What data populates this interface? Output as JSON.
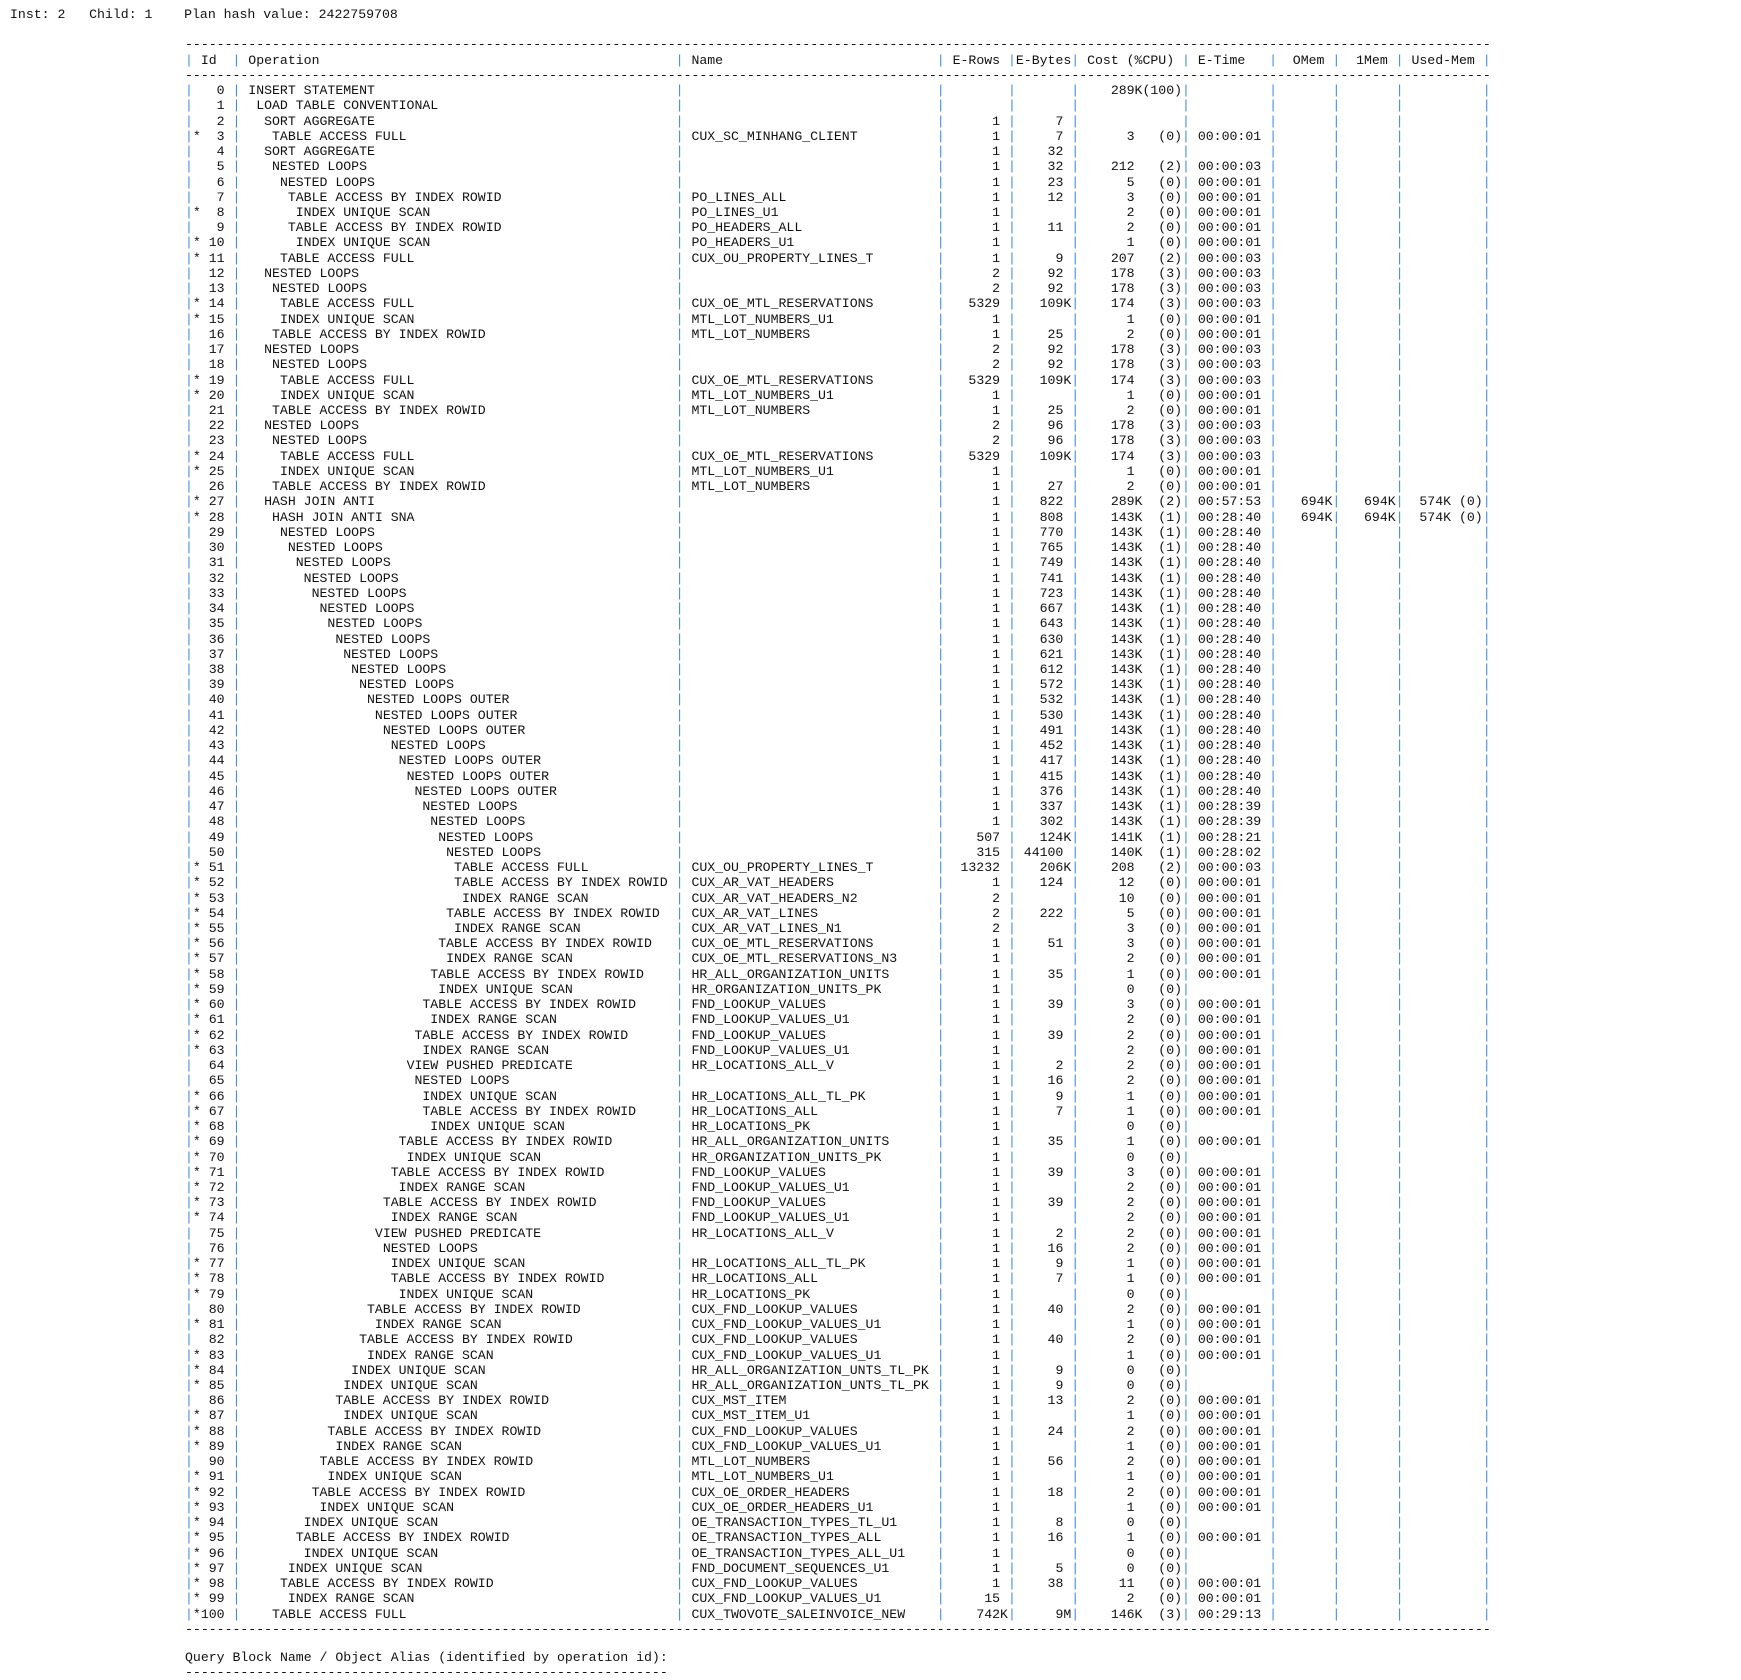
{
  "header": {
    "inst": "Inst: 2",
    "child": "Child: 1",
    "plan_hash": "Plan hash value: 2422759708"
  },
  "columns": {
    "id": "Id",
    "operation": "Operation",
    "name": "Name",
    "e_rows": "E-Rows",
    "e_bytes": "E-Bytes",
    "cost": "Cost (%CPU)",
    "e_time": "E-Time",
    "omem": "OMem",
    "mem1": "1Mem",
    "used_mem": "Used-Mem"
  },
  "row_columns": [
    "id",
    "predicate",
    "depth",
    "operation",
    "name",
    "e_rows",
    "e_bytes",
    "cost",
    "cpu",
    "e_time",
    "omem",
    "mem1",
    "used_mem"
  ],
  "rows": [
    [
      "0",
      "",
      0,
      "INSERT STATEMENT",
      "",
      "",
      "",
      "289K",
      "(100)",
      "",
      "",
      "",
      ""
    ],
    [
      "1",
      "",
      1,
      "LOAD TABLE CONVENTIONAL",
      "",
      "",
      "",
      "",
      "",
      "",
      "",
      "",
      ""
    ],
    [
      "2",
      "",
      2,
      "SORT AGGREGATE",
      "",
      "1",
      "7",
      "",
      "",
      "",
      "",
      "",
      ""
    ],
    [
      "3",
      "*",
      3,
      "TABLE ACCESS FULL",
      "CUX_SC_MINHANG_CLIENT",
      "1",
      "7",
      "3",
      "(0)",
      "00:00:01",
      "",
      "",
      ""
    ],
    [
      "4",
      "",
      2,
      "SORT AGGREGATE",
      "",
      "1",
      "32",
      "",
      "",
      "",
      "",
      "",
      ""
    ],
    [
      "5",
      "",
      3,
      "NESTED LOOPS",
      "",
      "1",
      "32",
      "212",
      "(2)",
      "00:00:03",
      "",
      "",
      ""
    ],
    [
      "6",
      "",
      4,
      "NESTED LOOPS",
      "",
      "1",
      "23",
      "5",
      "(0)",
      "00:00:01",
      "",
      "",
      ""
    ],
    [
      "7",
      "",
      5,
      "TABLE ACCESS BY INDEX ROWID",
      "PO_LINES_ALL",
      "1",
      "12",
      "3",
      "(0)",
      "00:00:01",
      "",
      "",
      ""
    ],
    [
      "8",
      "*",
      6,
      "INDEX UNIQUE SCAN",
      "PO_LINES_U1",
      "1",
      "",
      "2",
      "(0)",
      "00:00:01",
      "",
      "",
      ""
    ],
    [
      "9",
      "",
      5,
      "TABLE ACCESS BY INDEX ROWID",
      "PO_HEADERS_ALL",
      "1",
      "11",
      "2",
      "(0)",
      "00:00:01",
      "",
      "",
      ""
    ],
    [
      "10",
      "*",
      6,
      "INDEX UNIQUE SCAN",
      "PO_HEADERS_U1",
      "1",
      "",
      "1",
      "(0)",
      "00:00:01",
      "",
      "",
      ""
    ],
    [
      "11",
      "*",
      4,
      "TABLE ACCESS FULL",
      "CUX_OU_PROPERTY_LINES_T",
      "1",
      "9",
      "207",
      "(2)",
      "00:00:03",
      "",
      "",
      ""
    ],
    [
      "12",
      "",
      2,
      "NESTED LOOPS",
      "",
      "2",
      "92",
      "178",
      "(3)",
      "00:00:03",
      "",
      "",
      ""
    ],
    [
      "13",
      "",
      3,
      "NESTED LOOPS",
      "",
      "2",
      "92",
      "178",
      "(3)",
      "00:00:03",
      "",
      "",
      ""
    ],
    [
      "14",
      "*",
      4,
      "TABLE ACCESS FULL",
      "CUX_OE_MTL_RESERVATIONS",
      "5329",
      "109K",
      "174",
      "(3)",
      "00:00:03",
      "",
      "",
      ""
    ],
    [
      "15",
      "*",
      4,
      "INDEX UNIQUE SCAN",
      "MTL_LOT_NUMBERS_U1",
      "1",
      "",
      "1",
      "(0)",
      "00:00:01",
      "",
      "",
      ""
    ],
    [
      "16",
      "",
      3,
      "TABLE ACCESS BY INDEX ROWID",
      "MTL_LOT_NUMBERS",
      "1",
      "25",
      "2",
      "(0)",
      "00:00:01",
      "",
      "",
      ""
    ],
    [
      "17",
      "",
      2,
      "NESTED LOOPS",
      "",
      "2",
      "92",
      "178",
      "(3)",
      "00:00:03",
      "",
      "",
      ""
    ],
    [
      "18",
      "",
      3,
      "NESTED LOOPS",
      "",
      "2",
      "92",
      "178",
      "(3)",
      "00:00:03",
      "",
      "",
      ""
    ],
    [
      "19",
      "*",
      4,
      "TABLE ACCESS FULL",
      "CUX_OE_MTL_RESERVATIONS",
      "5329",
      "109K",
      "174",
      "(3)",
      "00:00:03",
      "",
      "",
      ""
    ],
    [
      "20",
      "*",
      4,
      "INDEX UNIQUE SCAN",
      "MTL_LOT_NUMBERS_U1",
      "1",
      "",
      "1",
      "(0)",
      "00:00:01",
      "",
      "",
      ""
    ],
    [
      "21",
      "",
      3,
      "TABLE ACCESS BY INDEX ROWID",
      "MTL_LOT_NUMBERS",
      "1",
      "25",
      "2",
      "(0)",
      "00:00:01",
      "",
      "",
      ""
    ],
    [
      "22",
      "",
      2,
      "NESTED LOOPS",
      "",
      "2",
      "96",
      "178",
      "(3)",
      "00:00:03",
      "",
      "",
      ""
    ],
    [
      "23",
      "",
      3,
      "NESTED LOOPS",
      "",
      "2",
      "96",
      "178",
      "(3)",
      "00:00:03",
      "",
      "",
      ""
    ],
    [
      "24",
      "*",
      4,
      "TABLE ACCESS FULL",
      "CUX_OE_MTL_RESERVATIONS",
      "5329",
      "109K",
      "174",
      "(3)",
      "00:00:03",
      "",
      "",
      ""
    ],
    [
      "25",
      "*",
      4,
      "INDEX UNIQUE SCAN",
      "MTL_LOT_NUMBERS_U1",
      "1",
      "",
      "1",
      "(0)",
      "00:00:01",
      "",
      "",
      ""
    ],
    [
      "26",
      "",
      3,
      "TABLE ACCESS BY INDEX ROWID",
      "MTL_LOT_NUMBERS",
      "1",
      "27",
      "2",
      "(0)",
      "00:00:01",
      "",
      "",
      ""
    ],
    [
      "27",
      "*",
      2,
      "HASH JOIN ANTI",
      "",
      "1",
      "822",
      "289K",
      "(2)",
      "00:57:53",
      "694K",
      "694K",
      "574K (0)"
    ],
    [
      "28",
      "*",
      3,
      "HASH JOIN ANTI SNA",
      "",
      "1",
      "808",
      "143K",
      "(1)",
      "00:28:40",
      "694K",
      "694K",
      "574K (0)"
    ],
    [
      "29",
      "",
      4,
      "NESTED LOOPS",
      "",
      "1",
      "770",
      "143K",
      "(1)",
      "00:28:40",
      "",
      "",
      ""
    ],
    [
      "30",
      "",
      5,
      "NESTED LOOPS",
      "",
      "1",
      "765",
      "143K",
      "(1)",
      "00:28:40",
      "",
      "",
      ""
    ],
    [
      "31",
      "",
      6,
      "NESTED LOOPS",
      "",
      "1",
      "749",
      "143K",
      "(1)",
      "00:28:40",
      "",
      "",
      ""
    ],
    [
      "32",
      "",
      7,
      "NESTED LOOPS",
      "",
      "1",
      "741",
      "143K",
      "(1)",
      "00:28:40",
      "",
      "",
      ""
    ],
    [
      "33",
      "",
      8,
      "NESTED LOOPS",
      "",
      "1",
      "723",
      "143K",
      "(1)",
      "00:28:40",
      "",
      "",
      ""
    ],
    [
      "34",
      "",
      9,
      "NESTED LOOPS",
      "",
      "1",
      "667",
      "143K",
      "(1)",
      "00:28:40",
      "",
      "",
      ""
    ],
    [
      "35",
      "",
      10,
      "NESTED LOOPS",
      "",
      "1",
      "643",
      "143K",
      "(1)",
      "00:28:40",
      "",
      "",
      ""
    ],
    [
      "36",
      "",
      11,
      "NESTED LOOPS",
      "",
      "1",
      "630",
      "143K",
      "(1)",
      "00:28:40",
      "",
      "",
      ""
    ],
    [
      "37",
      "",
      12,
      "NESTED LOOPS",
      "",
      "1",
      "621",
      "143K",
      "(1)",
      "00:28:40",
      "",
      "",
      ""
    ],
    [
      "38",
      "",
      13,
      "NESTED LOOPS",
      "",
      "1",
      "612",
      "143K",
      "(1)",
      "00:28:40",
      "",
      "",
      ""
    ],
    [
      "39",
      "",
      14,
      "NESTED LOOPS",
      "",
      "1",
      "572",
      "143K",
      "(1)",
      "00:28:40",
      "",
      "",
      ""
    ],
    [
      "40",
      "",
      15,
      "NESTED LOOPS OUTER",
      "",
      "1",
      "532",
      "143K",
      "(1)",
      "00:28:40",
      "",
      "",
      ""
    ],
    [
      "41",
      "",
      16,
      "NESTED LOOPS OUTER",
      "",
      "1",
      "530",
      "143K",
      "(1)",
      "00:28:40",
      "",
      "",
      ""
    ],
    [
      "42",
      "",
      17,
      "NESTED LOOPS OUTER",
      "",
      "1",
      "491",
      "143K",
      "(1)",
      "00:28:40",
      "",
      "",
      ""
    ],
    [
      "43",
      "",
      18,
      "NESTED LOOPS",
      "",
      "1",
      "452",
      "143K",
      "(1)",
      "00:28:40",
      "",
      "",
      ""
    ],
    [
      "44",
      "",
      19,
      "NESTED LOOPS OUTER",
      "",
      "1",
      "417",
      "143K",
      "(1)",
      "00:28:40",
      "",
      "",
      ""
    ],
    [
      "45",
      "",
      20,
      "NESTED LOOPS OUTER",
      "",
      "1",
      "415",
      "143K",
      "(1)",
      "00:28:40",
      "",
      "",
      ""
    ],
    [
      "46",
      "",
      21,
      "NESTED LOOPS OUTER",
      "",
      "1",
      "376",
      "143K",
      "(1)",
      "00:28:40",
      "",
      "",
      ""
    ],
    [
      "47",
      "",
      22,
      "NESTED LOOPS",
      "",
      "1",
      "337",
      "143K",
      "(1)",
      "00:28:39",
      "",
      "",
      ""
    ],
    [
      "48",
      "",
      23,
      "NESTED LOOPS",
      "",
      "1",
      "302",
      "143K",
      "(1)",
      "00:28:39",
      "",
      "",
      ""
    ],
    [
      "49",
      "",
      24,
      "NESTED LOOPS",
      "",
      "507",
      "124K",
      "141K",
      "(1)",
      "00:28:21",
      "",
      "",
      ""
    ],
    [
      "50",
      "",
      25,
      "NESTED LOOPS",
      "",
      "315",
      "44100",
      "140K",
      "(1)",
      "00:28:02",
      "",
      "",
      ""
    ],
    [
      "51",
      "*",
      26,
      "TABLE ACCESS FULL",
      "CUX_OU_PROPERTY_LINES_T",
      "13232",
      "206K",
      "208",
      "(2)",
      "00:00:03",
      "",
      "",
      ""
    ],
    [
      "52",
      "*",
      26,
      "TABLE ACCESS BY INDEX ROWID",
      "CUX_AR_VAT_HEADERS",
      "1",
      "124",
      "12",
      "(0)",
      "00:00:01",
      "",
      "",
      ""
    ],
    [
      "53",
      "*",
      27,
      "INDEX RANGE SCAN",
      "CUX_AR_VAT_HEADERS_N2",
      "2",
      "",
      "10",
      "(0)",
      "00:00:01",
      "",
      "",
      ""
    ],
    [
      "54",
      "*",
      25,
      "TABLE ACCESS BY INDEX ROWID",
      "CUX_AR_VAT_LINES",
      "2",
      "222",
      "5",
      "(0)",
      "00:00:01",
      "",
      "",
      ""
    ],
    [
      "55",
      "*",
      26,
      "INDEX RANGE SCAN",
      "CUX_AR_VAT_LINES_N1",
      "2",
      "",
      "3",
      "(0)",
      "00:00:01",
      "",
      "",
      ""
    ],
    [
      "56",
      "*",
      24,
      "TABLE ACCESS BY INDEX ROWID",
      "CUX_OE_MTL_RESERVATIONS",
      "1",
      "51",
      "3",
      "(0)",
      "00:00:01",
      "",
      "",
      ""
    ],
    [
      "57",
      "*",
      25,
      "INDEX RANGE SCAN",
      "CUX_OE_MTL_RESERVATIONS_N3",
      "1",
      "",
      "2",
      "(0)",
      "00:00:01",
      "",
      "",
      ""
    ],
    [
      "58",
      "*",
      23,
      "TABLE ACCESS BY INDEX ROWID",
      "HR_ALL_ORGANIZATION_UNITS",
      "1",
      "35",
      "1",
      "(0)",
      "00:00:01",
      "",
      "",
      ""
    ],
    [
      "59",
      "*",
      24,
      "INDEX UNIQUE SCAN",
      "HR_ORGANIZATION_UNITS_PK",
      "1",
      "",
      "0",
      "(0)",
      "",
      "",
      "",
      ""
    ],
    [
      "60",
      "*",
      22,
      "TABLE ACCESS BY INDEX ROWID",
      "FND_LOOKUP_VALUES",
      "1",
      "39",
      "3",
      "(0)",
      "00:00:01",
      "",
      "",
      ""
    ],
    [
      "61",
      "*",
      23,
      "INDEX RANGE SCAN",
      "FND_LOOKUP_VALUES_U1",
      "1",
      "",
      "2",
      "(0)",
      "00:00:01",
      "",
      "",
      ""
    ],
    [
      "62",
      "*",
      21,
      "TABLE ACCESS BY INDEX ROWID",
      "FND_LOOKUP_VALUES",
      "1",
      "39",
      "2",
      "(0)",
      "00:00:01",
      "",
      "",
      ""
    ],
    [
      "63",
      "*",
      22,
      "INDEX RANGE SCAN",
      "FND_LOOKUP_VALUES_U1",
      "1",
      "",
      "2",
      "(0)",
      "00:00:01",
      "",
      "",
      ""
    ],
    [
      "64",
      "",
      20,
      "VIEW PUSHED PREDICATE",
      "HR_LOCATIONS_ALL_V",
      "1",
      "2",
      "2",
      "(0)",
      "00:00:01",
      "",
      "",
      ""
    ],
    [
      "65",
      "",
      21,
      "NESTED LOOPS",
      "",
      "1",
      "16",
      "2",
      "(0)",
      "00:00:01",
      "",
      "",
      ""
    ],
    [
      "66",
      "*",
      22,
      "INDEX UNIQUE SCAN",
      "HR_LOCATIONS_ALL_TL_PK",
      "1",
      "9",
      "1",
      "(0)",
      "00:00:01",
      "",
      "",
      ""
    ],
    [
      "67",
      "*",
      22,
      "TABLE ACCESS BY INDEX ROWID",
      "HR_LOCATIONS_ALL",
      "1",
      "7",
      "1",
      "(0)",
      "00:00:01",
      "",
      "",
      ""
    ],
    [
      "68",
      "*",
      23,
      "INDEX UNIQUE SCAN",
      "HR_LOCATIONS_PK",
      "1",
      "",
      "0",
      "(0)",
      "",
      "",
      "",
      ""
    ],
    [
      "69",
      "*",
      19,
      "TABLE ACCESS BY INDEX ROWID",
      "HR_ALL_ORGANIZATION_UNITS",
      "1",
      "35",
      "1",
      "(0)",
      "00:00:01",
      "",
      "",
      ""
    ],
    [
      "70",
      "*",
      20,
      "INDEX UNIQUE SCAN",
      "HR_ORGANIZATION_UNITS_PK",
      "1",
      "",
      "0",
      "(0)",
      "",
      "",
      "",
      ""
    ],
    [
      "71",
      "*",
      18,
      "TABLE ACCESS BY INDEX ROWID",
      "FND_LOOKUP_VALUES",
      "1",
      "39",
      "3",
      "(0)",
      "00:00:01",
      "",
      "",
      ""
    ],
    [
      "72",
      "*",
      19,
      "INDEX RANGE SCAN",
      "FND_LOOKUP_VALUES_U1",
      "1",
      "",
      "2",
      "(0)",
      "00:00:01",
      "",
      "",
      ""
    ],
    [
      "73",
      "*",
      17,
      "TABLE ACCESS BY INDEX ROWID",
      "FND_LOOKUP_VALUES",
      "1",
      "39",
      "2",
      "(0)",
      "00:00:01",
      "",
      "",
      ""
    ],
    [
      "74",
      "*",
      18,
      "INDEX RANGE SCAN",
      "FND_LOOKUP_VALUES_U1",
      "1",
      "",
      "2",
      "(0)",
      "00:00:01",
      "",
      "",
      ""
    ],
    [
      "75",
      "",
      16,
      "VIEW PUSHED PREDICATE",
      "HR_LOCATIONS_ALL_V",
      "1",
      "2",
      "2",
      "(0)",
      "00:00:01",
      "",
      "",
      ""
    ],
    [
      "76",
      "",
      17,
      "NESTED LOOPS",
      "",
      "1",
      "16",
      "2",
      "(0)",
      "00:00:01",
      "",
      "",
      ""
    ],
    [
      "77",
      "*",
      18,
      "INDEX UNIQUE SCAN",
      "HR_LOCATIONS_ALL_TL_PK",
      "1",
      "9",
      "1",
      "(0)",
      "00:00:01",
      "",
      "",
      ""
    ],
    [
      "78",
      "*",
      18,
      "TABLE ACCESS BY INDEX ROWID",
      "HR_LOCATIONS_ALL",
      "1",
      "7",
      "1",
      "(0)",
      "00:00:01",
      "",
      "",
      ""
    ],
    [
      "79",
      "*",
      19,
      "INDEX UNIQUE SCAN",
      "HR_LOCATIONS_PK",
      "1",
      "",
      "0",
      "(0)",
      "",
      "",
      "",
      ""
    ],
    [
      "80",
      "",
      15,
      "TABLE ACCESS BY INDEX ROWID",
      "CUX_FND_LOOKUP_VALUES",
      "1",
      "40",
      "2",
      "(0)",
      "00:00:01",
      "",
      "",
      ""
    ],
    [
      "81",
      "*",
      16,
      "INDEX RANGE SCAN",
      "CUX_FND_LOOKUP_VALUES_U1",
      "1",
      "",
      "1",
      "(0)",
      "00:00:01",
      "",
      "",
      ""
    ],
    [
      "82",
      "",
      14,
      "TABLE ACCESS BY INDEX ROWID",
      "CUX_FND_LOOKUP_VALUES",
      "1",
      "40",
      "2",
      "(0)",
      "00:00:01",
      "",
      "",
      ""
    ],
    [
      "83",
      "*",
      15,
      "INDEX RANGE SCAN",
      "CUX_FND_LOOKUP_VALUES_U1",
      "1",
      "",
      "1",
      "(0)",
      "00:00:01",
      "",
      "",
      ""
    ],
    [
      "84",
      "*",
      13,
      "INDEX UNIQUE SCAN",
      "HR_ALL_ORGANIZATION_UNTS_TL_PK",
      "1",
      "9",
      "0",
      "(0)",
      "",
      "",
      "",
      ""
    ],
    [
      "85",
      "*",
      12,
      "INDEX UNIQUE SCAN",
      "HR_ALL_ORGANIZATION_UNTS_TL_PK",
      "1",
      "9",
      "0",
      "(0)",
      "",
      "",
      "",
      ""
    ],
    [
      "86",
      "",
      11,
      "TABLE ACCESS BY INDEX ROWID",
      "CUX_MST_ITEM",
      "1",
      "13",
      "2",
      "(0)",
      "00:00:01",
      "",
      "",
      ""
    ],
    [
      "87",
      "*",
      12,
      "INDEX UNIQUE SCAN",
      "CUX_MST_ITEM_U1",
      "1",
      "",
      "1",
      "(0)",
      "00:00:01",
      "",
      "",
      ""
    ],
    [
      "88",
      "*",
      10,
      "TABLE ACCESS BY INDEX ROWID",
      "CUX_FND_LOOKUP_VALUES",
      "1",
      "24",
      "2",
      "(0)",
      "00:00:01",
      "",
      "",
      ""
    ],
    [
      "89",
      "*",
      11,
      "INDEX RANGE SCAN",
      "CUX_FND_LOOKUP_VALUES_U1",
      "1",
      "",
      "1",
      "(0)",
      "00:00:01",
      "",
      "",
      ""
    ],
    [
      "90",
      "",
      9,
      "TABLE ACCESS BY INDEX ROWID",
      "MTL_LOT_NUMBERS",
      "1",
      "56",
      "2",
      "(0)",
      "00:00:01",
      "",
      "",
      ""
    ],
    [
      "91",
      "*",
      10,
      "INDEX UNIQUE SCAN",
      "MTL_LOT_NUMBERS_U1",
      "1",
      "",
      "1",
      "(0)",
      "00:00:01",
      "",
      "",
      ""
    ],
    [
      "92",
      "*",
      8,
      "TABLE ACCESS BY INDEX ROWID",
      "CUX_OE_ORDER_HEADERS",
      "1",
      "18",
      "2",
      "(0)",
      "00:00:01",
      "",
      "",
      ""
    ],
    [
      "93",
      "*",
      9,
      "INDEX UNIQUE SCAN",
      "CUX_OE_ORDER_HEADERS_U1",
      "1",
      "",
      "1",
      "(0)",
      "00:00:01",
      "",
      "",
      ""
    ],
    [
      "94",
      "*",
      7,
      "INDEX UNIQUE SCAN",
      "OE_TRANSACTION_TYPES_TL_U1",
      "1",
      "8",
      "0",
      "(0)",
      "",
      "",
      "",
      ""
    ],
    [
      "95",
      "*",
      6,
      "TABLE ACCESS BY INDEX ROWID",
      "OE_TRANSACTION_TYPES_ALL",
      "1",
      "16",
      "1",
      "(0)",
      "00:00:01",
      "",
      "",
      ""
    ],
    [
      "96",
      "*",
      7,
      "INDEX UNIQUE SCAN",
      "OE_TRANSACTION_TYPES_ALL_U1",
      "1",
      "",
      "0",
      "(0)",
      "",
      "",
      "",
      ""
    ],
    [
      "97",
      "*",
      5,
      "INDEX UNIQUE SCAN",
      "FND_DOCUMENT_SEQUENCES_U1",
      "1",
      "5",
      "0",
      "(0)",
      "",
      "",
      "",
      ""
    ],
    [
      "98",
      "*",
      4,
      "TABLE ACCESS BY INDEX ROWID",
      "CUX_FND_LOOKUP_VALUES",
      "1",
      "38",
      "11",
      "(0)",
      "00:00:01",
      "",
      "",
      ""
    ],
    [
      "99",
      "*",
      5,
      "INDEX RANGE SCAN",
      "CUX_FND_LOOKUP_VALUES_U1",
      "15",
      "",
      "2",
      "(0)",
      "00:00:01",
      "",
      "",
      ""
    ],
    [
      "100",
      "*",
      3,
      "TABLE ACCESS FULL",
      "CUX_TWOVOTE_SALEINVOICE_NEW",
      "742K",
      "9M",
      "146K",
      "(3)",
      "00:29:13",
      "",
      "",
      ""
    ]
  ],
  "footer": {
    "query_block_title": "Query Block Name / Object Alias (identified by operation id):"
  }
}
